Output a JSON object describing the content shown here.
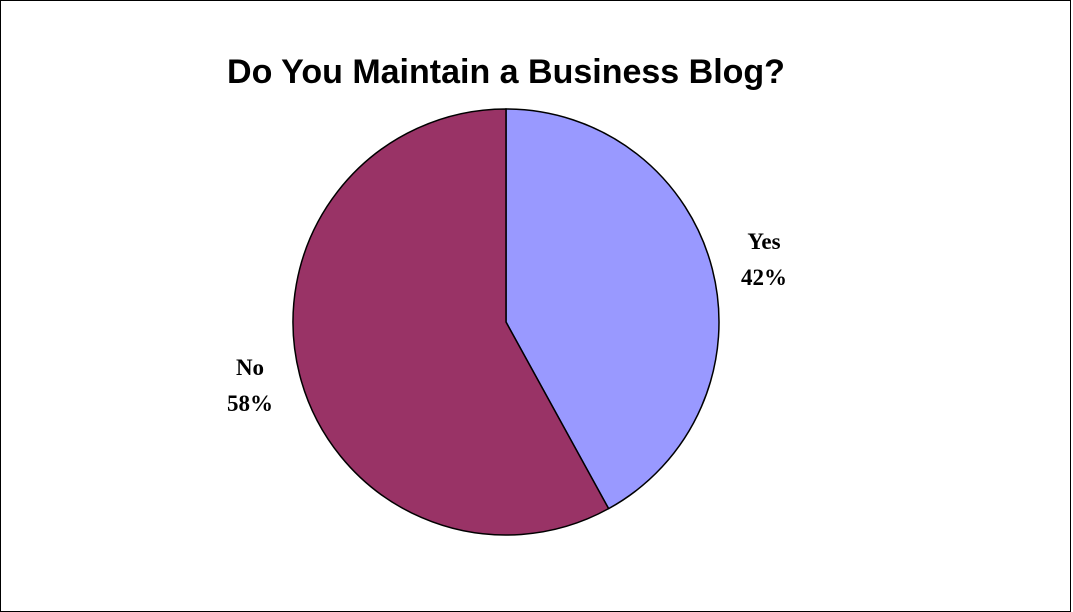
{
  "chart_data": {
    "type": "pie",
    "title": "Do You Maintain a Business Blog?",
    "slices": [
      {
        "label": "Yes",
        "percent_label": "42%",
        "value": 42,
        "color": "#9999FF"
      },
      {
        "label": "No",
        "percent_label": "58%",
        "value": 58,
        "color": "#993366"
      }
    ],
    "start": "12 o'clock",
    "direction": "clockwise",
    "outline_color": "#000000",
    "legend": "none"
  }
}
